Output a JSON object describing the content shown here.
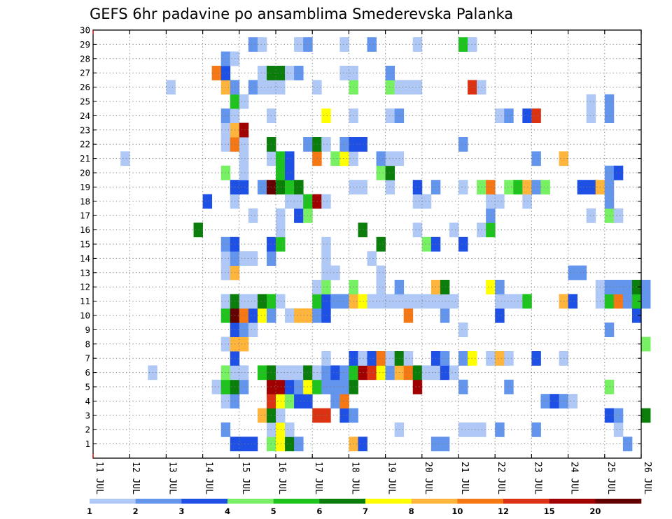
{
  "chart_data": {
    "type": "heatmap",
    "title": "GEFS 6hr padavine po ansamblima Smederevska Palanka",
    "xlabel": "",
    "ylabel": "",
    "x_tick_labels": [
      "11 JUL",
      "12 JUL",
      "13 JUL",
      "14 JUL",
      "15 JUL",
      "16 JUL",
      "17 JUL",
      "18 JUL",
      "19 JUL",
      "20 JUL",
      "21 JUL",
      "22 JUL",
      "23 JUL",
      "24 JUL",
      "25 JUL",
      "26 JUL"
    ],
    "y_tick_labels": [
      "1",
      "2",
      "3",
      "4",
      "5",
      "6",
      "7",
      "8",
      "9",
      "10",
      "11",
      "12",
      "13",
      "14",
      "15",
      "16",
      "17",
      "18",
      "19",
      "20",
      "21",
      "22",
      "23",
      "24",
      "25",
      "26",
      "27",
      "28",
      "29",
      "30"
    ],
    "y_range": [
      0,
      30
    ],
    "grid": true,
    "time_steps_per_day": 4,
    "legend_levels": [
      "1",
      "2",
      "3",
      "4",
      "5",
      "6",
      "7",
      "8",
      "10",
      "12",
      "15",
      "20"
    ],
    "legend_colors": [
      "#afc8f5",
      "#6495ed",
      "#1e50e6",
      "#78f064",
      "#1ec31e",
      "#0a7d0a",
      "#ffff00",
      "#ffb43c",
      "#f57814",
      "#dc3214",
      "#a00000",
      "#640000"
    ],
    "cells": [
      [
        1,
        15,
        3
      ],
      [
        1,
        16,
        3
      ],
      [
        1,
        17,
        3
      ],
      [
        1,
        19,
        4
      ],
      [
        1,
        20,
        7
      ],
      [
        1,
        21,
        6
      ],
      [
        1,
        22,
        2
      ],
      [
        1,
        28,
        8
      ],
      [
        1,
        29,
        3
      ],
      [
        1,
        37,
        2
      ],
      [
        1,
        38,
        2
      ],
      [
        1,
        58,
        2
      ],
      [
        1,
        69,
        6
      ],
      [
        1,
        70,
        2
      ],
      [
        2,
        14,
        2
      ],
      [
        2,
        19,
        1
      ],
      [
        2,
        20,
        7
      ],
      [
        2,
        21,
        1
      ],
      [
        2,
        33,
        1
      ],
      [
        2,
        40,
        1
      ],
      [
        2,
        41,
        1
      ],
      [
        2,
        42,
        1
      ],
      [
        2,
        44,
        2
      ],
      [
        2,
        48,
        2
      ],
      [
        2,
        57,
        1
      ],
      [
        3,
        18,
        8
      ],
      [
        3,
        19,
        6
      ],
      [
        3,
        20,
        1
      ],
      [
        3,
        24,
        10
      ],
      [
        3,
        25,
        10
      ],
      [
        3,
        27,
        3
      ],
      [
        3,
        28,
        2
      ],
      [
        3,
        56,
        3
      ],
      [
        3,
        57,
        2
      ],
      [
        3,
        60,
        6
      ],
      [
        4,
        14,
        1
      ],
      [
        4,
        15,
        2
      ],
      [
        4,
        19,
        10
      ],
      [
        4,
        20,
        7
      ],
      [
        4,
        21,
        4
      ],
      [
        4,
        22,
        3
      ],
      [
        4,
        23,
        3
      ],
      [
        4,
        26,
        2
      ],
      [
        4,
        27,
        9
      ],
      [
        4,
        49,
        2
      ],
      [
        4,
        50,
        3
      ],
      [
        4,
        51,
        2
      ],
      [
        4,
        52,
        1
      ],
      [
        5,
        13,
        1
      ],
      [
        5,
        14,
        5
      ],
      [
        5,
        15,
        6
      ],
      [
        5,
        16,
        2
      ],
      [
        5,
        19,
        11
      ],
      [
        5,
        20,
        11
      ],
      [
        5,
        21,
        3
      ],
      [
        5,
        22,
        2
      ],
      [
        5,
        23,
        7
      ],
      [
        5,
        24,
        5
      ],
      [
        5,
        25,
        2
      ],
      [
        5,
        26,
        2
      ],
      [
        5,
        27,
        2
      ],
      [
        5,
        28,
        6
      ],
      [
        5,
        35,
        11
      ],
      [
        5,
        40,
        2
      ],
      [
        5,
        45,
        2
      ],
      [
        5,
        56,
        4
      ],
      [
        6,
        6,
        1
      ],
      [
        6,
        14,
        4
      ],
      [
        6,
        15,
        1
      ],
      [
        6,
        16,
        1
      ],
      [
        6,
        18,
        5
      ],
      [
        6,
        19,
        6
      ],
      [
        6,
        20,
        1
      ],
      [
        6,
        21,
        1
      ],
      [
        6,
        22,
        1
      ],
      [
        6,
        23,
        6
      ],
      [
        6,
        24,
        1
      ],
      [
        6,
        25,
        2
      ],
      [
        6,
        26,
        3
      ],
      [
        6,
        27,
        2
      ],
      [
        6,
        28,
        5
      ],
      [
        6,
        29,
        11
      ],
      [
        6,
        30,
        10
      ],
      [
        6,
        31,
        7
      ],
      [
        6,
        32,
        2
      ],
      [
        6,
        33,
        8
      ],
      [
        6,
        34,
        9
      ],
      [
        6,
        35,
        6
      ],
      [
        6,
        36,
        1
      ],
      [
        6,
        37,
        1
      ],
      [
        6,
        38,
        3
      ],
      [
        6,
        39,
        1
      ],
      [
        7,
        15,
        3
      ],
      [
        7,
        25,
        1
      ],
      [
        7,
        28,
        3
      ],
      [
        7,
        29,
        1
      ],
      [
        7,
        30,
        3
      ],
      [
        7,
        31,
        9
      ],
      [
        7,
        32,
        1
      ],
      [
        7,
        33,
        6
      ],
      [
        7,
        34,
        1
      ],
      [
        7,
        37,
        3
      ],
      [
        7,
        38,
        2
      ],
      [
        7,
        40,
        2
      ],
      [
        7,
        41,
        7
      ],
      [
        7,
        43,
        1
      ],
      [
        7,
        44,
        8
      ],
      [
        7,
        45,
        1
      ],
      [
        7,
        48,
        3
      ],
      [
        7,
        51,
        1
      ],
      [
        8,
        14,
        1
      ],
      [
        8,
        15,
        8
      ],
      [
        8,
        16,
        8
      ],
      [
        8,
        60,
        4
      ],
      [
        9,
        15,
        3
      ],
      [
        9,
        16,
        2
      ],
      [
        9,
        17,
        1
      ],
      [
        9,
        40,
        1
      ],
      [
        9,
        56,
        2
      ],
      [
        10,
        14,
        5
      ],
      [
        10,
        15,
        12
      ],
      [
        10,
        16,
        9
      ],
      [
        10,
        17,
        3
      ],
      [
        10,
        18,
        7
      ],
      [
        10,
        19,
        2
      ],
      [
        10,
        21,
        1
      ],
      [
        10,
        22,
        8
      ],
      [
        10,
        23,
        8
      ],
      [
        10,
        24,
        2
      ],
      [
        10,
        25,
        3
      ],
      [
        10,
        34,
        9
      ],
      [
        10,
        38,
        2
      ],
      [
        10,
        44,
        3
      ],
      [
        10,
        59,
        3
      ],
      [
        11,
        14,
        1
      ],
      [
        11,
        15,
        6
      ],
      [
        11,
        16,
        1
      ],
      [
        11,
        17,
        1
      ],
      [
        11,
        18,
        6
      ],
      [
        11,
        19,
        5
      ],
      [
        11,
        20,
        1
      ],
      [
        11,
        24,
        5
      ],
      [
        11,
        25,
        3
      ],
      [
        11,
        26,
        2
      ],
      [
        11,
        27,
        2
      ],
      [
        11,
        28,
        8
      ],
      [
        11,
        29,
        7
      ],
      [
        11,
        30,
        1
      ],
      [
        11,
        31,
        1
      ],
      [
        11,
        32,
        1
      ],
      [
        11,
        33,
        1
      ],
      [
        11,
        34,
        1
      ],
      [
        11,
        35,
        1
      ],
      [
        11,
        36,
        1
      ],
      [
        11,
        37,
        1
      ],
      [
        11,
        38,
        1
      ],
      [
        11,
        39,
        1
      ],
      [
        11,
        44,
        1
      ],
      [
        11,
        45,
        1
      ],
      [
        11,
        46,
        1
      ],
      [
        11,
        47,
        5
      ],
      [
        11,
        51,
        8
      ],
      [
        11,
        52,
        3
      ],
      [
        11,
        55,
        1
      ],
      [
        11,
        56,
        5
      ],
      [
        11,
        57,
        9
      ],
      [
        11,
        58,
        2
      ],
      [
        11,
        59,
        5
      ],
      [
        11,
        60,
        2
      ],
      [
        12,
        24,
        1
      ],
      [
        12,
        25,
        4
      ],
      [
        12,
        28,
        4
      ],
      [
        12,
        31,
        1
      ],
      [
        12,
        33,
        2
      ],
      [
        12,
        37,
        8
      ],
      [
        12,
        38,
        6
      ],
      [
        12,
        43,
        7
      ],
      [
        12,
        44,
        2
      ],
      [
        12,
        55,
        1
      ],
      [
        12,
        56,
        2
      ],
      [
        12,
        57,
        2
      ],
      [
        12,
        58,
        2
      ],
      [
        12,
        59,
        6
      ],
      [
        12,
        60,
        2
      ],
      [
        13,
        14,
        1
      ],
      [
        13,
        15,
        8
      ],
      [
        13,
        25,
        1
      ],
      [
        13,
        26,
        1
      ],
      [
        13,
        31,
        1
      ],
      [
        13,
        52,
        2
      ],
      [
        13,
        53,
        2
      ],
      [
        14,
        14,
        1
      ],
      [
        14,
        15,
        2
      ],
      [
        14,
        16,
        1
      ],
      [
        14,
        17,
        1
      ],
      [
        14,
        19,
        2
      ],
      [
        14,
        25,
        1
      ],
      [
        14,
        30,
        1
      ],
      [
        15,
        14,
        2
      ],
      [
        15,
        15,
        3
      ],
      [
        15,
        19,
        3
      ],
      [
        15,
        20,
        5
      ],
      [
        15,
        25,
        1
      ],
      [
        15,
        31,
        6
      ],
      [
        15,
        36,
        4
      ],
      [
        15,
        37,
        3
      ],
      [
        15,
        40,
        3
      ],
      [
        16,
        11,
        6
      ],
      [
        16,
        20,
        1
      ],
      [
        16,
        29,
        6
      ],
      [
        16,
        35,
        1
      ],
      [
        16,
        39,
        1
      ],
      [
        16,
        42,
        1
      ],
      [
        16,
        43,
        5
      ],
      [
        17,
        17,
        1
      ],
      [
        17,
        20,
        1
      ],
      [
        17,
        22,
        3
      ],
      [
        17,
        23,
        4
      ],
      [
        17,
        43,
        2
      ],
      [
        17,
        54,
        1
      ],
      [
        17,
        56,
        4
      ],
      [
        17,
        57,
        1
      ],
      [
        18,
        12,
        3
      ],
      [
        18,
        15,
        1
      ],
      [
        18,
        21,
        1
      ],
      [
        18,
        22,
        1
      ],
      [
        18,
        23,
        5
      ],
      [
        18,
        24,
        11
      ],
      [
        18,
        25,
        1
      ],
      [
        18,
        35,
        1
      ],
      [
        18,
        36,
        1
      ],
      [
        18,
        43,
        1
      ],
      [
        18,
        44,
        1
      ],
      [
        18,
        47,
        1
      ],
      [
        18,
        56,
        2
      ],
      [
        19,
        15,
        3
      ],
      [
        19,
        16,
        3
      ],
      [
        19,
        18,
        2
      ],
      [
        19,
        19,
        12
      ],
      [
        19,
        20,
        6
      ],
      [
        19,
        21,
        5
      ],
      [
        19,
        22,
        6
      ],
      [
        19,
        28,
        1
      ],
      [
        19,
        29,
        1
      ],
      [
        19,
        32,
        1
      ],
      [
        19,
        35,
        3
      ],
      [
        19,
        37,
        2
      ],
      [
        19,
        40,
        1
      ],
      [
        19,
        42,
        4
      ],
      [
        19,
        43,
        9
      ],
      [
        19,
        45,
        4
      ],
      [
        19,
        46,
        5
      ],
      [
        19,
        47,
        8
      ],
      [
        19,
        48,
        2
      ],
      [
        19,
        49,
        4
      ],
      [
        19,
        53,
        3
      ],
      [
        19,
        54,
        3
      ],
      [
        19,
        55,
        8
      ],
      [
        19,
        56,
        2
      ],
      [
        20,
        14,
        4
      ],
      [
        20,
        16,
        1
      ],
      [
        20,
        20,
        5
      ],
      [
        20,
        21,
        3
      ],
      [
        20,
        31,
        4
      ],
      [
        20,
        32,
        6
      ],
      [
        20,
        56,
        2
      ],
      [
        20,
        57,
        3
      ],
      [
        21,
        3,
        1
      ],
      [
        21,
        16,
        1
      ],
      [
        21,
        19,
        1
      ],
      [
        21,
        20,
        5
      ],
      [
        21,
        21,
        3
      ],
      [
        21,
        24,
        9
      ],
      [
        21,
        26,
        4
      ],
      [
        21,
        27,
        7
      ],
      [
        21,
        28,
        1
      ],
      [
        21,
        31,
        2
      ],
      [
        21,
        32,
        1
      ],
      [
        21,
        33,
        1
      ],
      [
        21,
        48,
        2
      ],
      [
        21,
        51,
        8
      ],
      [
        22,
        14,
        1
      ],
      [
        22,
        15,
        9
      ],
      [
        22,
        16,
        1
      ],
      [
        22,
        19,
        6
      ],
      [
        22,
        23,
        2
      ],
      [
        22,
        24,
        6
      ],
      [
        22,
        25,
        1
      ],
      [
        22,
        27,
        2
      ],
      [
        22,
        28,
        3
      ],
      [
        22,
        29,
        3
      ],
      [
        22,
        40,
        2
      ],
      [
        23,
        14,
        1
      ],
      [
        23,
        15,
        8
      ],
      [
        23,
        16,
        11
      ],
      [
        24,
        14,
        2
      ],
      [
        24,
        15,
        1
      ],
      [
        24,
        19,
        1
      ],
      [
        24,
        25,
        7
      ],
      [
        24,
        28,
        1
      ],
      [
        24,
        32,
        1
      ],
      [
        24,
        33,
        2
      ],
      [
        24,
        44,
        1
      ],
      [
        24,
        45,
        2
      ],
      [
        24,
        47,
        3
      ],
      [
        24,
        48,
        10
      ],
      [
        24,
        54,
        1
      ],
      [
        24,
        56,
        2
      ],
      [
        25,
        15,
        5
      ],
      [
        25,
        16,
        1
      ],
      [
        25,
        54,
        1
      ],
      [
        25,
        56,
        2
      ],
      [
        26,
        8,
        1
      ],
      [
        26,
        14,
        8
      ],
      [
        26,
        15,
        2
      ],
      [
        26,
        17,
        2
      ],
      [
        26,
        18,
        1
      ],
      [
        26,
        19,
        1
      ],
      [
        26,
        20,
        1
      ],
      [
        26,
        24,
        1
      ],
      [
        26,
        28,
        4
      ],
      [
        26,
        32,
        4
      ],
      [
        26,
        33,
        1
      ],
      [
        26,
        34,
        1
      ],
      [
        26,
        35,
        1
      ],
      [
        26,
        41,
        10
      ],
      [
        26,
        42,
        1
      ],
      [
        27,
        13,
        9
      ],
      [
        27,
        14,
        3
      ],
      [
        27,
        18,
        1
      ],
      [
        27,
        19,
        6
      ],
      [
        27,
        20,
        6
      ],
      [
        27,
        21,
        1
      ],
      [
        27,
        22,
        2
      ],
      [
        27,
        27,
        1
      ],
      [
        27,
        28,
        1
      ],
      [
        27,
        32,
        2
      ],
      [
        28,
        14,
        2
      ],
      [
        28,
        15,
        1
      ],
      [
        29,
        17,
        2
      ],
      [
        29,
        18,
        1
      ],
      [
        29,
        22,
        1
      ],
      [
        29,
        23,
        2
      ],
      [
        29,
        27,
        1
      ],
      [
        29,
        30,
        2
      ],
      [
        29,
        35,
        1
      ],
      [
        29,
        40,
        5
      ],
      [
        29,
        41,
        1
      ]
    ]
  }
}
